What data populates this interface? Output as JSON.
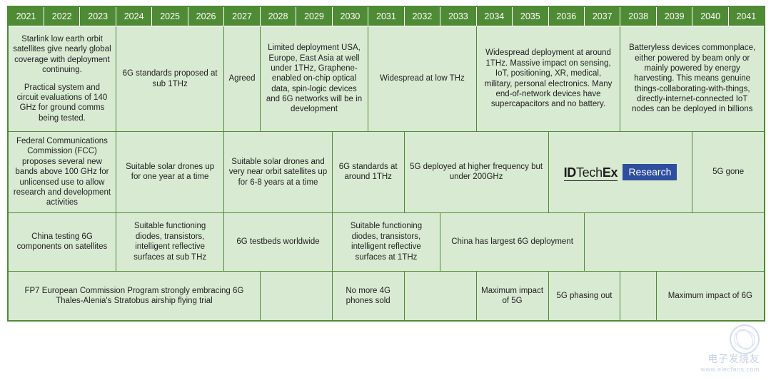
{
  "years": [
    "2021",
    "2022",
    "2023",
    "2024",
    "2025",
    "2026",
    "2027",
    "2028",
    "2029",
    "2030",
    "2031",
    "2032",
    "2033",
    "2034",
    "2035",
    "2036",
    "2037",
    "2038",
    "2039",
    "2040",
    "2041"
  ],
  "rows": {
    "r1": {
      "c0": {
        "p1": "Starlink low earth orbit satellites give nearly global coverage with deployment continuing.",
        "p2": "Practical system and circuit evaluations of  140 GHz for ground comms being tested."
      },
      "c1": "6G standards proposed at sub 1THz",
      "c2": "Agreed",
      "c3": "Limited deployment USA, Europe, East Asia at well under 1THz, Graphene-enabled on-chip optical data, spin-logic devices and 6G networks will be in development",
      "c4": "Widespread at low THz",
      "c5": "Widespread deployment at around 1THz. Massive impact on sensing, IoT, positioning, XR, medical, military, personal electronics. Many end-of-network devices have supercapacitors and no battery.",
      "c6": "Batteryless devices commonplace, either powered by beam only or mainly powered by energy harvesting. This means genuine things-collaborating-with-things, directly-internet-connected IoT nodes can be deployed in billions"
    },
    "r2": {
      "c0": "Federal Communications Commission  (FCC) proposes several new bands above 100 GHz for unlicensed use to allow research and development activities",
      "c1": "Suitable solar drones up for one year at a time",
      "c2": "Suitable solar drones and very near orbit satellites up for 6-8 years at a time",
      "c3": "6G standards at around 1THz",
      "c4": "5G deployed at higher frequency but under 200GHz",
      "c5_brand1": "IDTechEx",
      "c5_brand2": "Research",
      "c6": "5G gone"
    },
    "r3": {
      "c0": "China testing 6G components on satellites",
      "c1": "Suitable functioning diodes, transistors, intelligent reflective surfaces at sub THz",
      "c2": "6G testbeds worldwide",
      "c3": "Suitable functioning diodes, transistors, intelligent reflective surfaces at 1THz",
      "c4": "China has largest 6G deployment"
    },
    "r4": {
      "c0": {
        "p1": "FP7 European Commission Program strongly embracing 6G",
        "p2": "Thales-Alenia's Stratobus airship flying trial"
      },
      "c1": "No more 4G phones sold",
      "c2": "Maximum impact of 5G",
      "c3": "5G phasing out",
      "c4": "Maximum impact of 6G"
    }
  },
  "watermark": {
    "line1": "电子发烧友",
    "line2": "www.elecfans.com"
  },
  "style": {
    "header_bg": "#4f8a35",
    "header_fg": "#ffffff",
    "cell_bg": "#d9ead3",
    "cell_border": "#4f8a35",
    "brand_box_bg": "#2e4e9e",
    "font_family": "Arial",
    "header_fontsize": 12.5,
    "cell_fontsize": 11.5
  }
}
